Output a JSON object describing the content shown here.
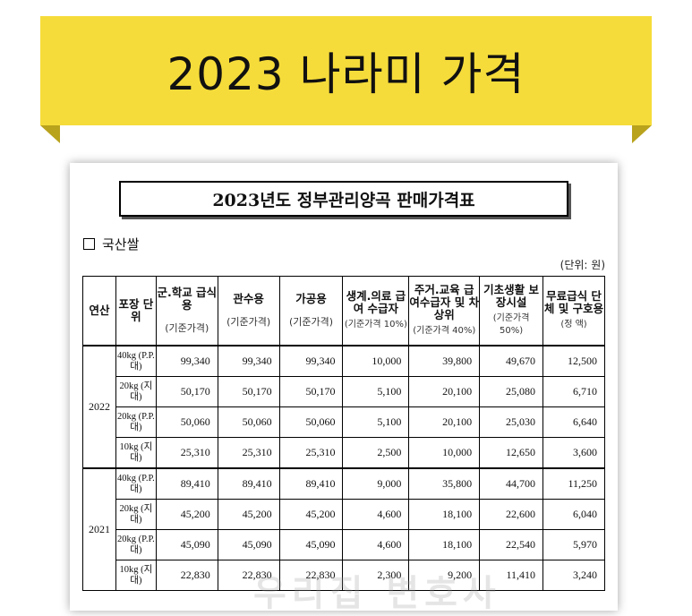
{
  "banner": {
    "title": "2023 나라미 가격"
  },
  "document": {
    "title": "2023년도 정부관리양곡 판매가격표",
    "section": "국산쌀",
    "unit": "(단위: 원)",
    "headers": {
      "year": "연산",
      "package": "포장 단위",
      "col1": {
        "main": "군.학교 급식용",
        "sub": "(기준가격)"
      },
      "col2": {
        "main": "관수용",
        "sub": "(기준가격)"
      },
      "col3": {
        "main": "가공용",
        "sub": "(기준가격)"
      },
      "col4": {
        "main": "생계.의료 급여 수급자",
        "sub": "(기준가격 10%)"
      },
      "col5": {
        "main": "주거.교육 급여수급자 및 차상위",
        "sub": "(기준가격 40%)"
      },
      "col6": {
        "main": "기초생활 보장시설",
        "sub": "(기준가격 50%)"
      },
      "col7": {
        "main": "무료급식 단체 및 구호용",
        "sub": "(정 액)"
      }
    },
    "groups": [
      {
        "year": "2022",
        "rows": [
          {
            "pkg": "40kg (P.P.대)",
            "vals": [
              "99,340",
              "99,340",
              "99,340",
              "10,000",
              "39,800",
              "49,670",
              "12,500"
            ]
          },
          {
            "pkg": "20kg (지 대)",
            "vals": [
              "50,170",
              "50,170",
              "50,170",
              "5,100",
              "20,100",
              "25,080",
              "6,710"
            ]
          },
          {
            "pkg": "20kg (P.P.대)",
            "vals": [
              "50,060",
              "50,060",
              "50,060",
              "5,100",
              "20,100",
              "25,030",
              "6,640"
            ]
          },
          {
            "pkg": "10kg (지 대)",
            "vals": [
              "25,310",
              "25,310",
              "25,310",
              "2,500",
              "10,000",
              "12,650",
              "3,600"
            ]
          }
        ]
      },
      {
        "year": "2021",
        "rows": [
          {
            "pkg": "40kg (P.P.대)",
            "vals": [
              "89,410",
              "89,410",
              "89,410",
              "9,000",
              "35,800",
              "44,700",
              "11,250"
            ]
          },
          {
            "pkg": "20kg (지 대)",
            "vals": [
              "45,200",
              "45,200",
              "45,200",
              "4,600",
              "18,100",
              "22,600",
              "6,040"
            ]
          },
          {
            "pkg": "20kg (P.P.대)",
            "vals": [
              "45,090",
              "45,090",
              "45,090",
              "4,600",
              "18,100",
              "22,540",
              "5,970"
            ]
          },
          {
            "pkg": "10kg (지 대)",
            "vals": [
              "22,830",
              "22,830",
              "22,830",
              "2,300",
              "9,200",
              "11,410",
              "3,240"
            ]
          }
        ]
      }
    ]
  },
  "watermark": "우리집 변호사"
}
